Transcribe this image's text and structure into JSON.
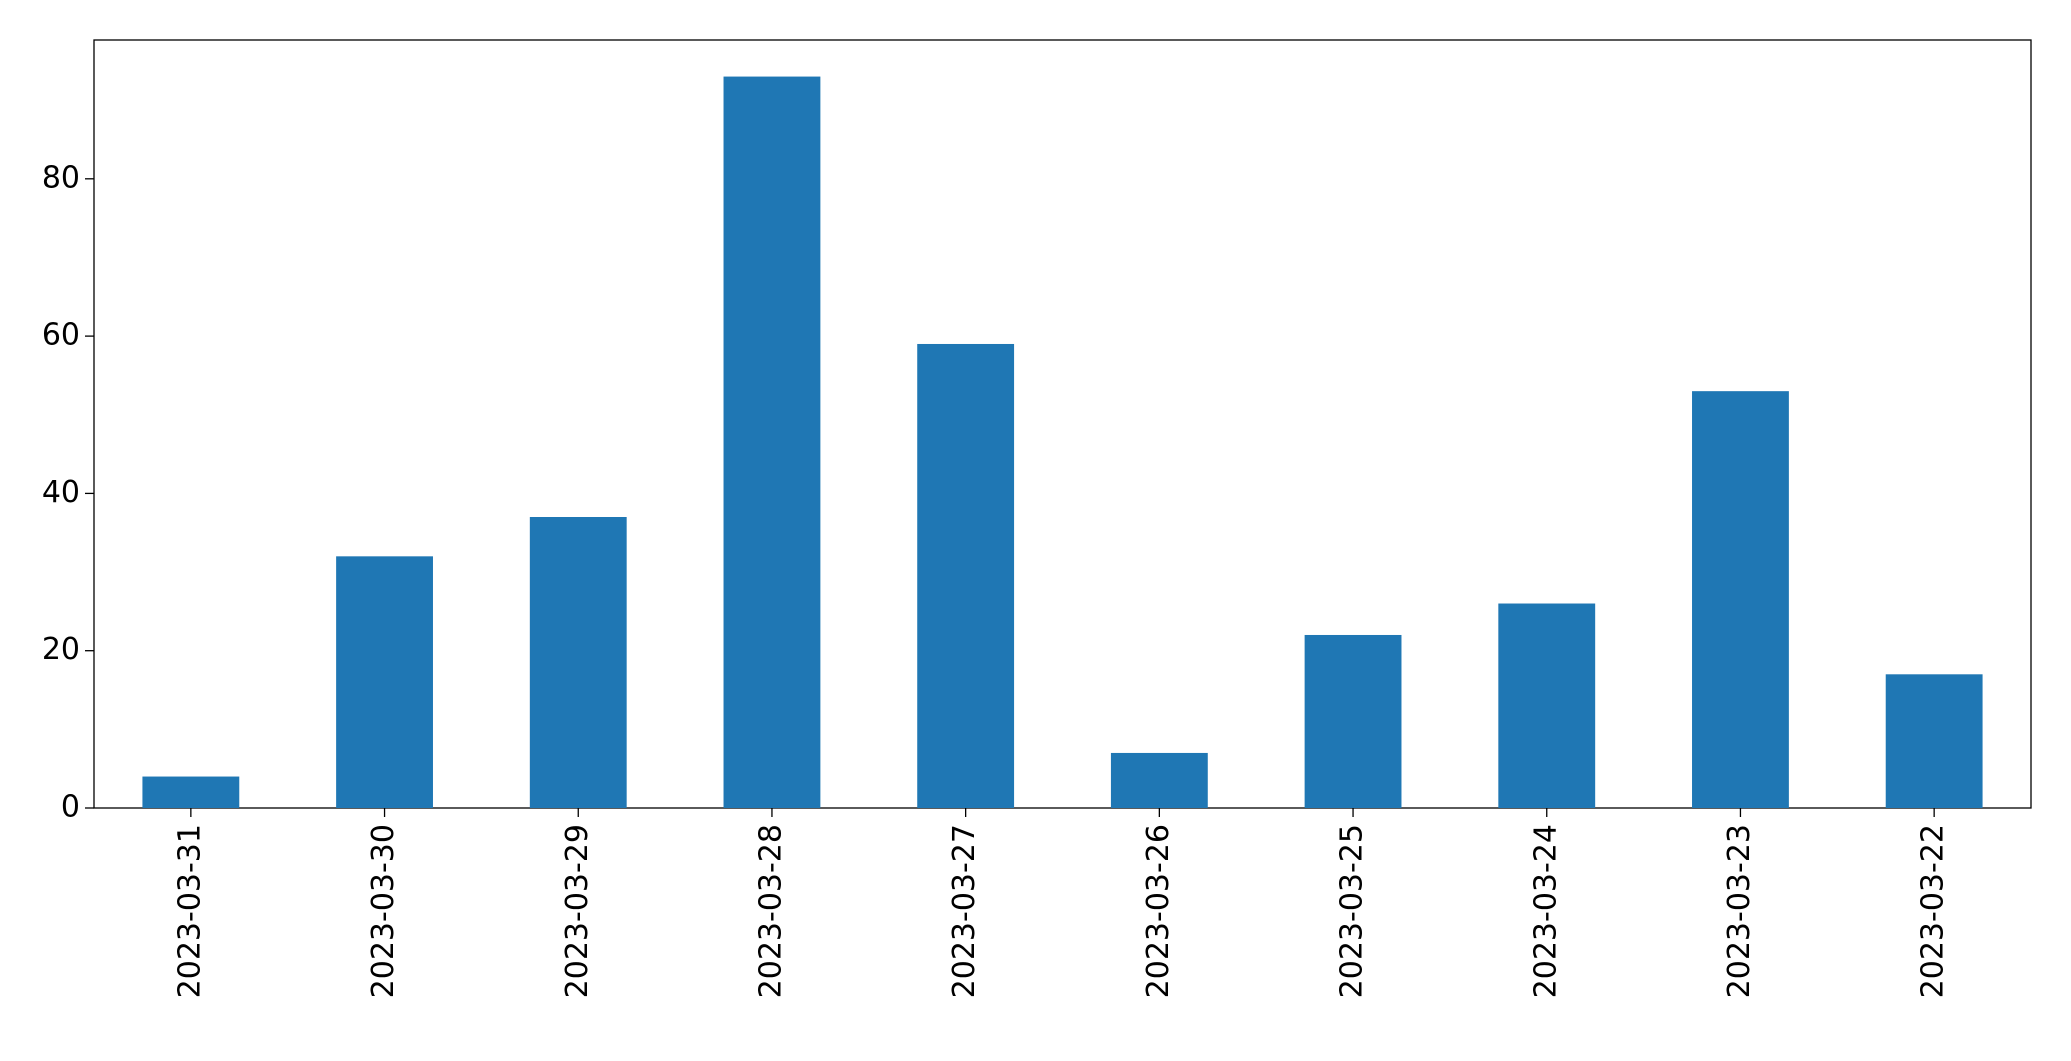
{
  "chart_data": {
    "type": "bar",
    "categories": [
      "2023-03-31",
      "2023-03-30",
      "2023-03-29",
      "2023-03-28",
      "2023-03-27",
      "2023-03-26",
      "2023-03-25",
      "2023-03-24",
      "2023-03-23",
      "2023-03-22"
    ],
    "values": [
      4,
      32,
      37,
      93,
      59,
      7,
      22,
      26,
      53,
      17
    ],
    "color": "#1f77b4",
    "ylim": [
      0,
      97.65
    ],
    "yticks": [
      0,
      20,
      40,
      60,
      80
    ]
  }
}
